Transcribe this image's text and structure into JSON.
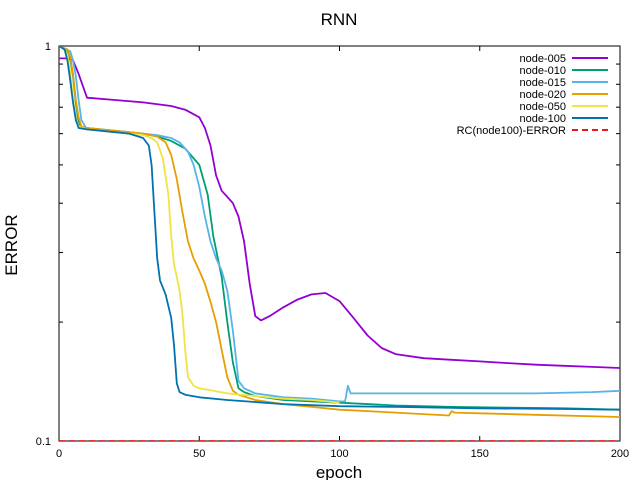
{
  "chart_data": {
    "type": "line",
    "title": "RNN",
    "xlabel": "epoch",
    "ylabel": "ERROR",
    "xlim": [
      0,
      200
    ],
    "ylim": [
      0.1,
      1
    ],
    "yscale": "log",
    "grid": false,
    "legend_position": "top-right",
    "x_ticks": [
      0,
      50,
      100,
      150,
      200
    ],
    "x_tick_labels": [
      "0",
      "50",
      "100",
      "150",
      "200"
    ],
    "y_ticks": [
      0.1,
      1
    ],
    "y_tick_labels": [
      "0.1",
      "1"
    ],
    "series": [
      {
        "name": "node-005",
        "color": "#9400d3",
        "dash": false,
        "x": [
          0,
          3,
          5,
          7,
          10,
          20,
          30,
          40,
          45,
          50,
          52,
          54,
          56,
          58,
          60,
          62,
          64,
          66,
          68,
          70,
          72,
          75,
          80,
          85,
          90,
          95,
          100,
          105,
          110,
          115,
          120,
          130,
          140,
          150,
          160,
          170,
          180,
          190,
          200
        ],
        "y": [
          0.93,
          0.93,
          0.92,
          0.85,
          0.74,
          0.73,
          0.72,
          0.705,
          0.69,
          0.66,
          0.62,
          0.56,
          0.47,
          0.43,
          0.415,
          0.4,
          0.37,
          0.32,
          0.25,
          0.207,
          0.202,
          0.207,
          0.218,
          0.228,
          0.235,
          0.237,
          0.226,
          0.205,
          0.185,
          0.172,
          0.166,
          0.162,
          0.1605,
          0.159,
          0.1575,
          0.156,
          0.155,
          0.154,
          0.153
        ]
      },
      {
        "name": "node-010",
        "color": "#009e73",
        "dash": false,
        "x": [
          0,
          3,
          4,
          5,
          6,
          7,
          8,
          10,
          20,
          30,
          35,
          40,
          45,
          50,
          53,
          55,
          58,
          60,
          62,
          64,
          66,
          70,
          80,
          100,
          120,
          140,
          160,
          180,
          200
        ],
        "y": [
          1.0,
          0.97,
          0.93,
          0.84,
          0.72,
          0.64,
          0.625,
          0.62,
          0.61,
          0.6,
          0.59,
          0.575,
          0.55,
          0.5,
          0.42,
          0.33,
          0.26,
          0.2,
          0.158,
          0.136,
          0.133,
          0.13,
          0.127,
          0.125,
          0.123,
          0.122,
          0.1215,
          0.121,
          0.12
        ]
      },
      {
        "name": "node-015",
        "color": "#56b4e9",
        "dash": false,
        "x": [
          0,
          4,
          5,
          6,
          7,
          8,
          10,
          20,
          30,
          35,
          40,
          43,
          46,
          48,
          50,
          52,
          54,
          56,
          58,
          60,
          62,
          64,
          66,
          70,
          80,
          90,
          100,
          102,
          103,
          104,
          110,
          130,
          150,
          170,
          190,
          200
        ],
        "y": [
          1.0,
          0.97,
          0.92,
          0.84,
          0.73,
          0.65,
          0.615,
          0.61,
          0.6,
          0.595,
          0.585,
          0.57,
          0.54,
          0.5,
          0.44,
          0.37,
          0.32,
          0.29,
          0.27,
          0.24,
          0.19,
          0.142,
          0.136,
          0.132,
          0.129,
          0.128,
          0.126,
          0.126,
          0.138,
          0.132,
          0.132,
          0.132,
          0.132,
          0.132,
          0.133,
          0.134
        ]
      },
      {
        "name": "node-020",
        "color": "#e69f00",
        "dash": false,
        "x": [
          0,
          3,
          4,
          5,
          6,
          7,
          8,
          10,
          20,
          30,
          35,
          38,
          40,
          42,
          44,
          46,
          48,
          50,
          52,
          54,
          56,
          58,
          60,
          62,
          64,
          70,
          80,
          90,
          100,
          120,
          139,
          140,
          141,
          150,
          170,
          200
        ],
        "y": [
          1.0,
          0.98,
          0.94,
          0.85,
          0.73,
          0.66,
          0.625,
          0.62,
          0.61,
          0.6,
          0.59,
          0.57,
          0.53,
          0.46,
          0.38,
          0.32,
          0.29,
          0.27,
          0.25,
          0.225,
          0.2,
          0.17,
          0.145,
          0.134,
          0.131,
          0.127,
          0.124,
          0.122,
          0.12,
          0.118,
          0.116,
          0.119,
          0.118,
          0.1175,
          0.1165,
          0.115
        ]
      },
      {
        "name": "node-050",
        "color": "#f0e442",
        "dash": false,
        "x": [
          0,
          2,
          3,
          4,
          5,
          6,
          7,
          10,
          20,
          30,
          33,
          35,
          37,
          39,
          40,
          41,
          42,
          43,
          44,
          45,
          46,
          48,
          50,
          55,
          60,
          70,
          80,
          90,
          100
        ],
        "y": [
          1.0,
          0.98,
          0.95,
          0.86,
          0.74,
          0.66,
          0.625,
          0.615,
          0.605,
          0.595,
          0.585,
          0.57,
          0.52,
          0.42,
          0.33,
          0.28,
          0.26,
          0.24,
          0.21,
          0.17,
          0.145,
          0.138,
          0.136,
          0.134,
          0.132,
          0.13,
          0.128,
          0.127,
          0.125
        ]
      },
      {
        "name": "node-100",
        "color": "#0072b2",
        "dash": false,
        "x": [
          0,
          2,
          3,
          4,
          5,
          6,
          7,
          10,
          20,
          25,
          30,
          32,
          33,
          34,
          35,
          36,
          38,
          40,
          41,
          42,
          43,
          44,
          45,
          50,
          60,
          80,
          100,
          120,
          150,
          180,
          200
        ],
        "y": [
          1.0,
          0.98,
          0.92,
          0.82,
          0.72,
          0.65,
          0.62,
          0.615,
          0.605,
          0.6,
          0.585,
          0.56,
          0.5,
          0.38,
          0.29,
          0.255,
          0.235,
          0.205,
          0.175,
          0.14,
          0.133,
          0.132,
          0.131,
          0.129,
          0.127,
          0.124,
          0.1225,
          0.122,
          0.121,
          0.1205,
          0.12
        ]
      },
      {
        "name": "RC(node100)-ERROR",
        "color": "#e41a1c",
        "dash": true,
        "x": [
          0,
          200
        ],
        "y": [
          0.1,
          0.1
        ]
      }
    ]
  }
}
